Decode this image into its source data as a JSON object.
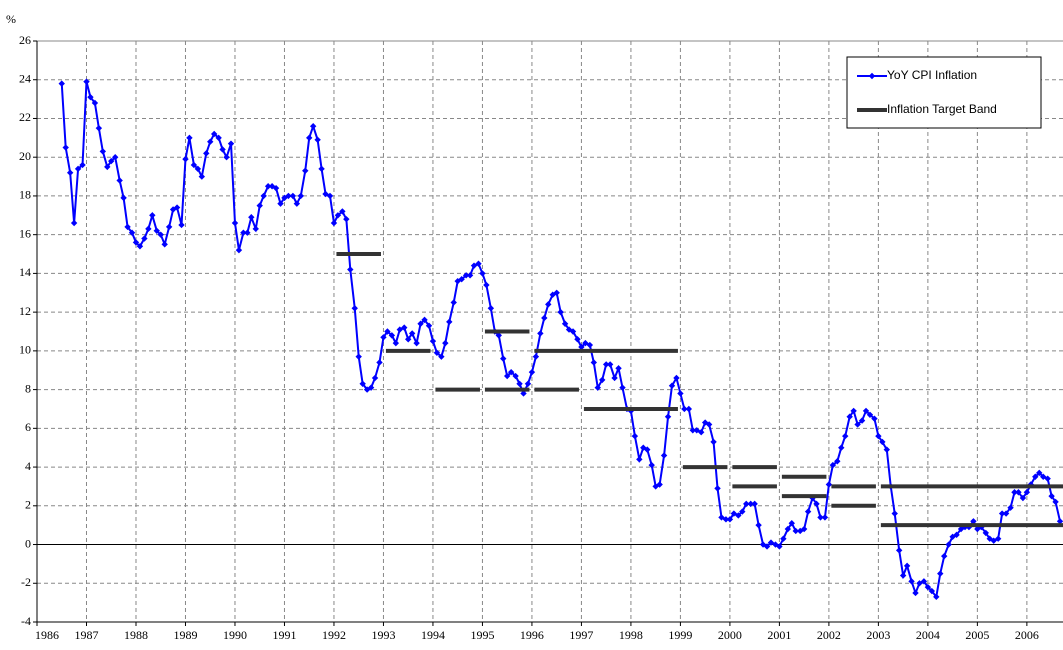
{
  "chart_data": {
    "type": "line",
    "y_unit": "%",
    "xlim": [
      1986,
      2006.73
    ],
    "ylim": [
      -4,
      26
    ],
    "xticks": [
      1986,
      1987,
      1988,
      1989,
      1990,
      1991,
      1992,
      1993,
      1994,
      1995,
      1996,
      1997,
      1998,
      1999,
      2000,
      2001,
      2002,
      2003,
      2004,
      2005,
      2006
    ],
    "yticks": [
      -4,
      -2,
      0,
      2,
      4,
      6,
      8,
      10,
      12,
      14,
      16,
      18,
      20,
      22,
      24,
      26
    ],
    "grid": true,
    "legend": "upper right",
    "series": [
      {
        "name": "YoY CPI Inflation",
        "color": "#0000ff",
        "x": [
          1986.5,
          1986.58,
          1986.67,
          1986.75,
          1986.83,
          1986.92,
          1987,
          1987.08,
          1987.17,
          1987.25,
          1987.33,
          1987.42,
          1987.5,
          1987.58,
          1987.67,
          1987.75,
          1987.83,
          1987.92,
          1988,
          1988.08,
          1988.17,
          1988.25,
          1988.33,
          1988.42,
          1988.5,
          1988.58,
          1988.67,
          1988.75,
          1988.83,
          1988.92,
          1989,
          1989.08,
          1989.17,
          1989.25,
          1989.33,
          1989.42,
          1989.5,
          1989.58,
          1989.67,
          1989.75,
          1989.83,
          1989.92,
          1990,
          1990.08,
          1990.17,
          1990.25,
          1990.33,
          1990.42,
          1990.5,
          1990.58,
          1990.67,
          1990.75,
          1990.83,
          1990.92,
          1991,
          1991.08,
          1991.17,
          1991.25,
          1991.33,
          1991.42,
          1991.5,
          1991.58,
          1991.67,
          1991.75,
          1991.83,
          1991.92,
          1992,
          1992.08,
          1992.17,
          1992.25,
          1992.33,
          1992.42,
          1992.5,
          1992.58,
          1992.67,
          1992.75,
          1992.83,
          1992.92,
          1993,
          1993.08,
          1993.17,
          1993.25,
          1993.33,
          1993.42,
          1993.5,
          1993.58,
          1993.67,
          1993.75,
          1993.83,
          1993.92,
          1994,
          1994.08,
          1994.17,
          1994.25,
          1994.33,
          1994.42,
          1994.5,
          1994.58,
          1994.67,
          1994.75,
          1994.83,
          1994.92,
          1995,
          1995.08,
          1995.17,
          1995.25,
          1995.33,
          1995.42,
          1995.5,
          1995.58,
          1995.67,
          1995.75,
          1995.83,
          1995.92,
          1996,
          1996.08,
          1996.17,
          1996.25,
          1996.33,
          1996.42,
          1996.5,
          1996.58,
          1996.67,
          1996.75,
          1996.83,
          1996.92,
          1997,
          1997.08,
          1997.17,
          1997.25,
          1997.33,
          1997.42,
          1997.5,
          1997.58,
          1997.67,
          1997.75,
          1997.83,
          1997.92,
          1998,
          1998.08,
          1998.17,
          1998.25,
          1998.33,
          1998.42,
          1998.5,
          1998.58,
          1998.67,
          1998.75,
          1998.83,
          1998.92,
          1999,
          1999.08,
          1999.17,
          1999.25,
          1999.33,
          1999.42,
          1999.5,
          1999.58,
          1999.67,
          1999.75,
          1999.83,
          1999.92,
          2000,
          2000.08,
          2000.17,
          2000.25,
          2000.33,
          2000.42,
          2000.5,
          2000.58,
          2000.67,
          2000.75,
          2000.83,
          2000.92,
          2001,
          2001.08,
          2001.17,
          2001.25,
          2001.33,
          2001.42,
          2001.5,
          2001.58,
          2001.67,
          2001.75,
          2001.83,
          2001.92,
          2002,
          2002.08,
          2002.17,
          2002.25,
          2002.33,
          2002.42,
          2002.5,
          2002.58,
          2002.67,
          2002.75,
          2002.83,
          2002.92,
          2003,
          2003.08,
          2003.17,
          2003.25,
          2003.33,
          2003.42,
          2003.5,
          2003.58,
          2003.67,
          2003.75,
          2003.83,
          2003.92,
          2004,
          2004.08,
          2004.17,
          2004.25,
          2004.33,
          2004.42,
          2004.5,
          2004.58,
          2004.67,
          2004.75,
          2004.83,
          2004.92,
          2005,
          2005.08,
          2005.17,
          2005.25,
          2005.33,
          2005.42,
          2005.5,
          2005.58,
          2005.67,
          2005.75,
          2005.83,
          2005.92,
          2006,
          2006.08,
          2006.17,
          2006.25,
          2006.33,
          2006.42,
          2006.5,
          2006.58,
          2006.67
        ],
        "values": [
          23.8,
          20.5,
          19.2,
          16.6,
          19.4,
          19.6,
          23.9,
          23.1,
          22.8,
          21.5,
          20.3,
          19.5,
          19.8,
          20.0,
          18.8,
          17.9,
          16.4,
          16.1,
          15.6,
          15.4,
          15.8,
          16.3,
          17.0,
          16.2,
          16.0,
          15.5,
          16.4,
          17.3,
          17.4,
          16.5,
          19.9,
          21.0,
          19.6,
          19.4,
          19.0,
          20.2,
          20.8,
          21.2,
          21.0,
          20.4,
          20.0,
          20.7,
          16.6,
          15.2,
          16.1,
          16.1,
          16.9,
          16.3,
          17.5,
          18.0,
          18.5,
          18.5,
          18.4,
          17.6,
          17.9,
          18.0,
          18.0,
          17.6,
          18.0,
          19.3,
          21.0,
          21.6,
          20.9,
          19.4,
          18.1,
          18.0,
          16.6,
          17.0,
          17.2,
          16.8,
          14.2,
          12.2,
          9.7,
          8.3,
          8.0,
          8.1,
          8.6,
          9.4,
          10.7,
          11.0,
          10.8,
          10.4,
          11.1,
          11.2,
          10.6,
          10.9,
          10.4,
          11.4,
          11.6,
          11.3,
          10.5,
          9.9,
          9.7,
          10.4,
          11.5,
          12.5,
          13.6,
          13.7,
          13.9,
          13.9,
          14.4,
          14.5,
          14.0,
          13.4,
          12.2,
          11.0,
          10.8,
          9.6,
          8.7,
          8.9,
          8.7,
          8.3,
          7.8,
          8.3,
          8.9,
          9.7,
          10.9,
          11.7,
          12.4,
          12.9,
          13.0,
          12.0,
          11.4,
          11.1,
          11.0,
          10.6,
          10.2,
          10.4,
          10.3,
          9.4,
          8.1,
          8.5,
          9.3,
          9.3,
          8.6,
          9.1,
          8.1,
          7.0,
          6.9,
          5.6,
          4.4,
          5.0,
          4.9,
          4.1,
          3.0,
          3.1,
          4.6,
          6.6,
          8.2,
          8.6,
          7.8,
          7.0,
          7.0,
          5.9,
          5.9,
          5.8,
          6.3,
          6.2,
          5.3,
          2.9,
          1.4,
          1.3,
          1.3,
          1.6,
          1.5,
          1.7,
          2.1,
          2.1,
          2.1,
          1.0,
          0.0,
          -0.1,
          0.1,
          0.0,
          -0.1,
          0.3,
          0.8,
          1.1,
          0.7,
          0.7,
          0.8,
          1.7,
          2.4,
          2.1,
          1.4,
          1.4,
          3.1,
          4.1,
          4.3,
          5.0,
          5.6,
          6.6,
          6.9,
          6.2,
          6.4,
          6.9,
          6.7,
          6.5,
          5.6,
          5.3,
          4.9,
          3.0,
          1.6,
          -0.3,
          -1.6,
          -1.1,
          -1.9,
          -2.5,
          -2.0,
          -1.9,
          -2.2,
          -2.4,
          -2.7,
          -1.5,
          -0.6,
          0.0,
          0.4,
          0.5,
          0.8,
          0.9,
          0.9,
          1.2,
          0.8,
          0.9,
          0.6,
          0.3,
          0.2,
          0.3,
          1.6,
          1.6,
          1.9,
          2.7,
          2.7,
          2.4,
          2.7,
          3.1,
          3.5,
          3.7,
          3.5,
          3.4,
          2.5,
          2.2,
          1.2
        ]
      },
      {
        "name": "Inflation Target Band",
        "color": "#333333",
        "type": "segments",
        "segments": [
          {
            "x": [
              1992.05,
              1992.95
            ],
            "value": 15
          },
          {
            "x": [
              1993.05,
              1993.95
            ],
            "value": 10
          },
          {
            "x": [
              1994.05,
              1994.95
            ],
            "value": 8
          },
          {
            "x": [
              1995.05,
              1995.95
            ],
            "value": 11
          },
          {
            "x": [
              1995.05,
              1995.95
            ],
            "value": 8
          },
          {
            "x": [
              1996.05,
              1996.95
            ],
            "value": 8
          },
          {
            "x": [
              1996.05,
              1998.95
            ],
            "value": 10
          },
          {
            "x": [
              1997.05,
              1998.95
            ],
            "value": 7
          },
          {
            "x": [
              1999.05,
              1999.95
            ],
            "value": 4
          },
          {
            "x": [
              2000.05,
              2000.95
            ],
            "value": 4
          },
          {
            "x": [
              2000.05,
              2000.95
            ],
            "value": 3
          },
          {
            "x": [
              2001.05,
              2001.95
            ],
            "value": 3.5
          },
          {
            "x": [
              2001.05,
              2001.95
            ],
            "value": 2.5
          },
          {
            "x": [
              2002.05,
              2002.95
            ],
            "value": 3
          },
          {
            "x": [
              2002.05,
              2002.95
            ],
            "value": 2
          },
          {
            "x": [
              2003.05,
              2006.73
            ],
            "value": 3
          },
          {
            "x": [
              2003.05,
              2006.73
            ],
            "value": 1
          }
        ]
      }
    ]
  }
}
